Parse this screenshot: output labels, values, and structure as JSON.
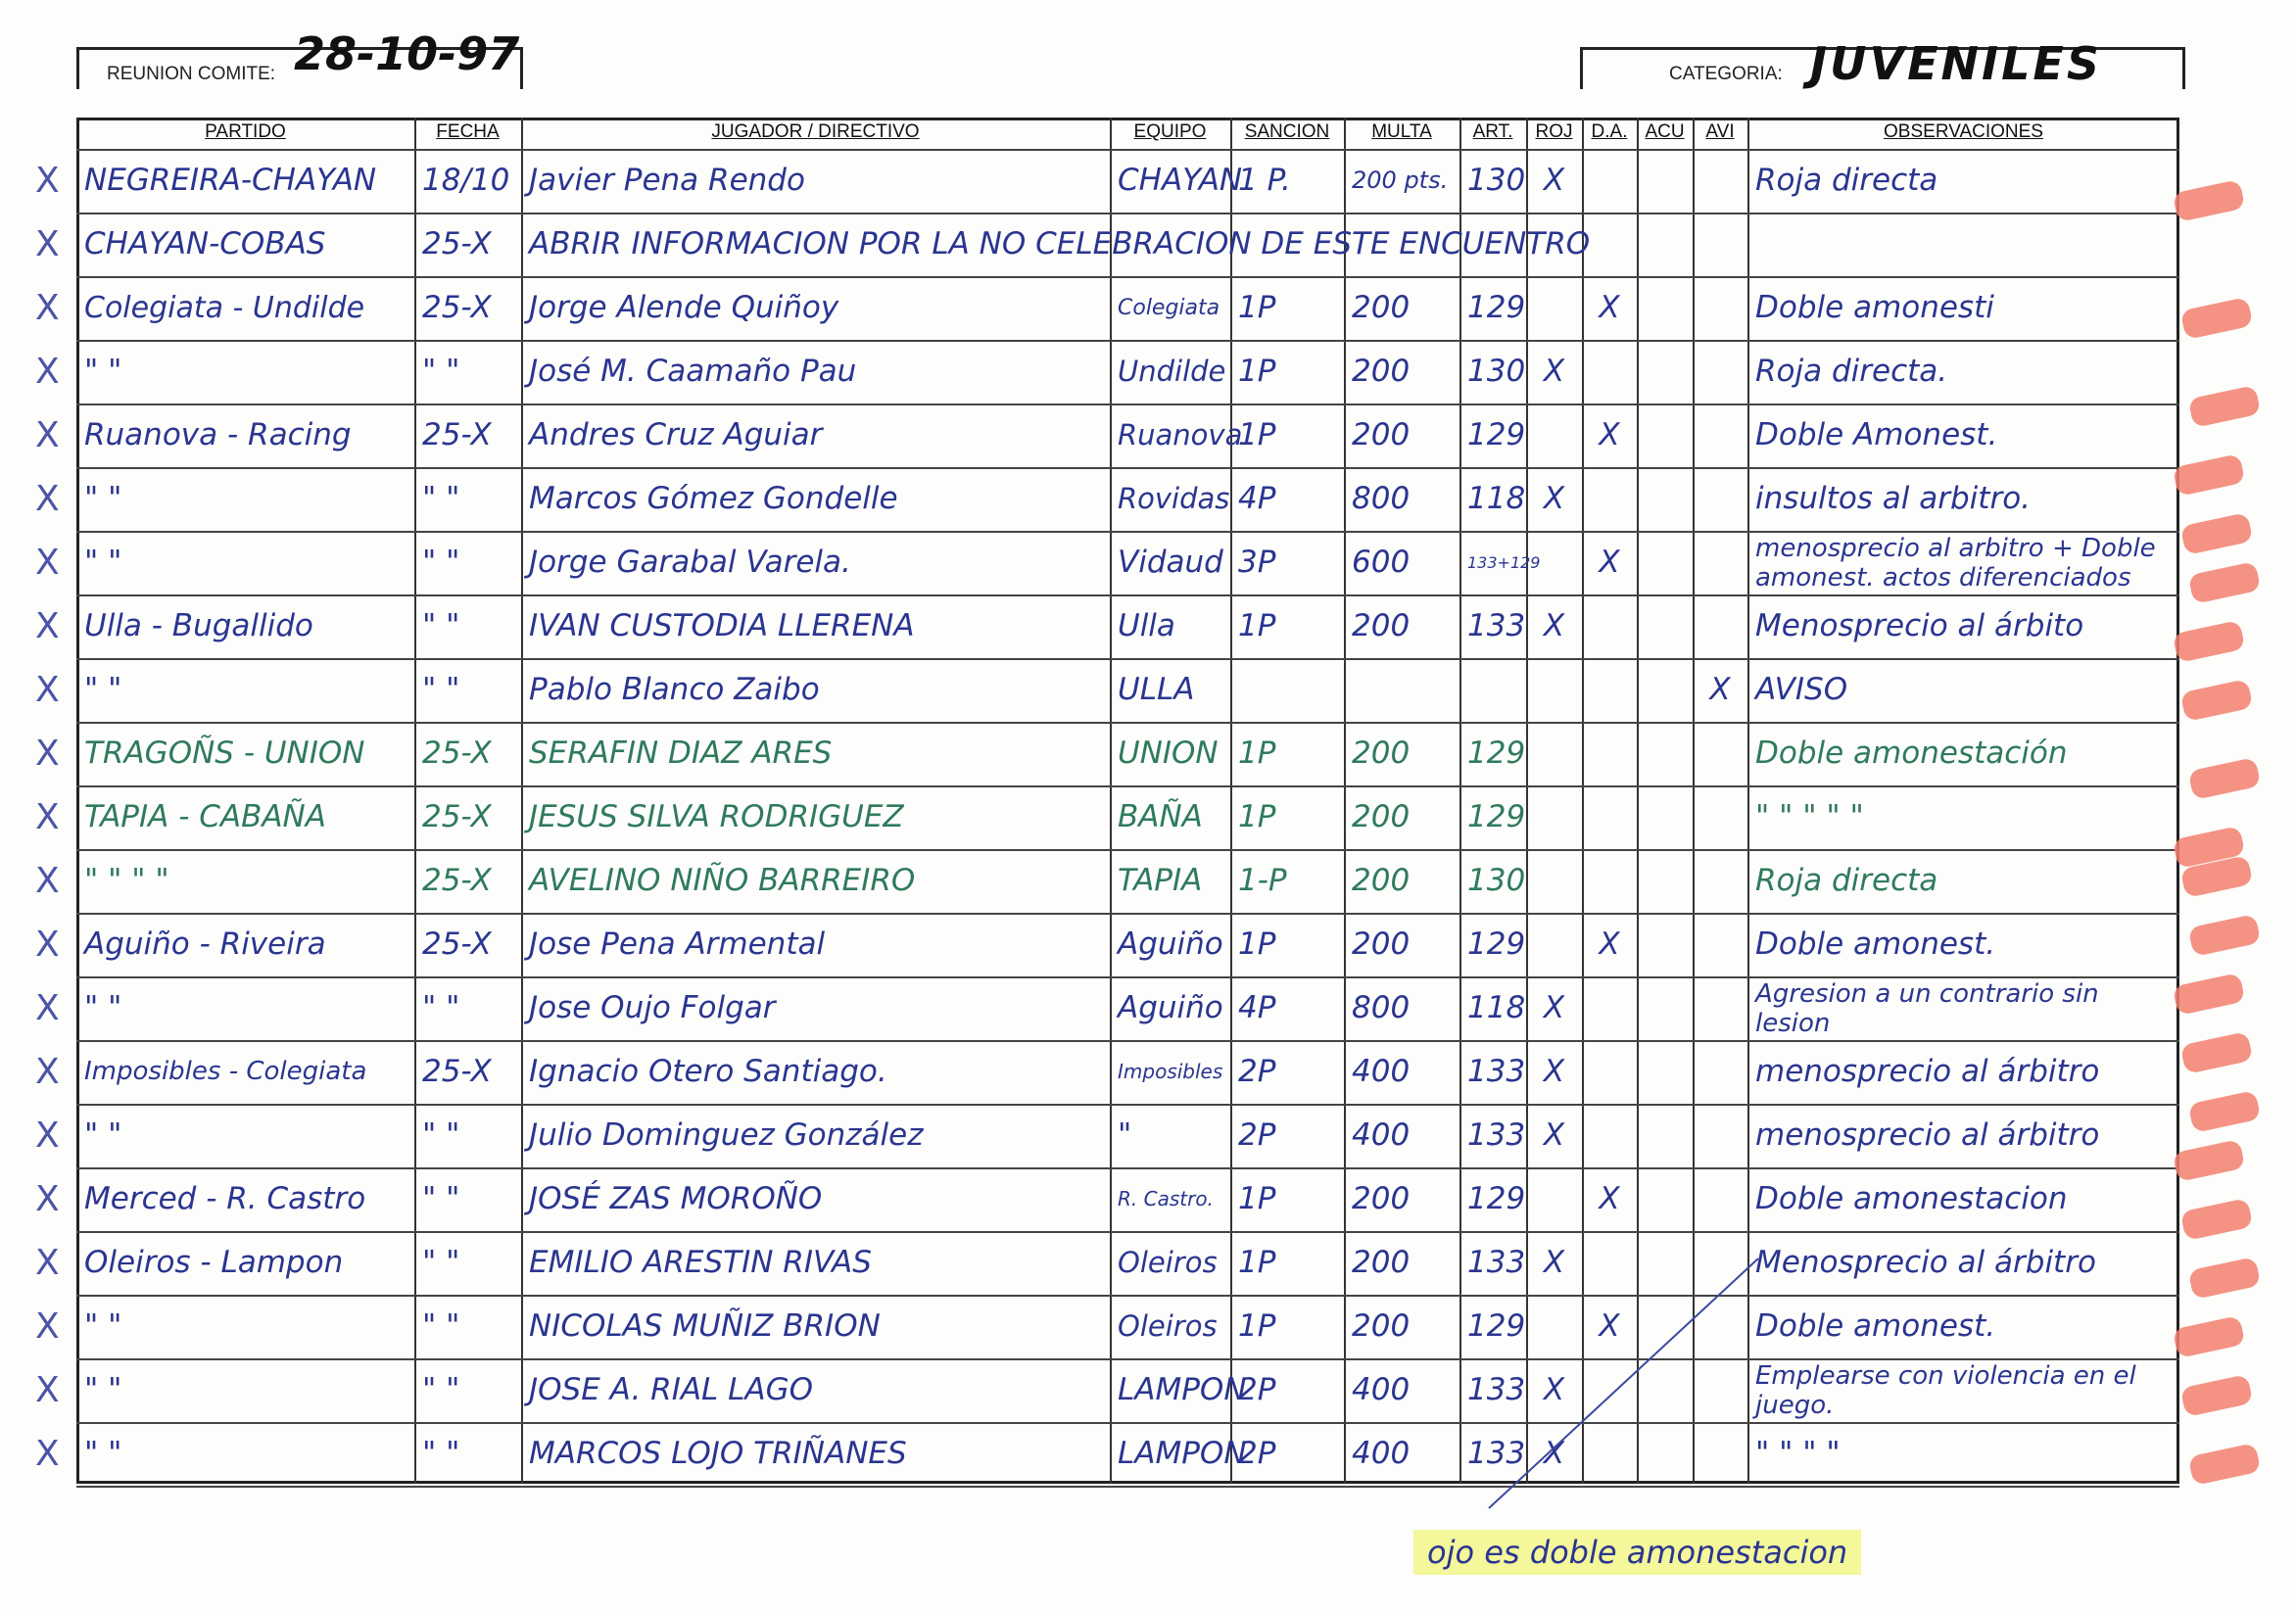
{
  "header": {
    "meeting_label": "REUNION COMITE:",
    "meeting_date": "28-10-97",
    "category_label": "CATEGORIA:",
    "category_value": "JUVENILES"
  },
  "columns": [
    "PARTIDO",
    "FECHA",
    "JUGADOR / DIRECTIVO",
    "EQUIPO",
    "SANCION",
    "MULTA",
    "ART.",
    "ROJ",
    "D.A.",
    "ACU",
    "AVI",
    "OBSERVACIONES"
  ],
  "ink_colors": {
    "blue": "#2a3590",
    "green": "#2f7a5e",
    "marker": "#f2806e",
    "highlight": "#f4f79a"
  },
  "rows": [
    {
      "partido": "NEGREIRA-CHAYAN",
      "fecha": "18/10",
      "jugador": "Javier Pena Rendo",
      "equipo": "CHAYAN",
      "sancion": "1 P.",
      "multa": "200 pts.",
      "art": "130",
      "roj": "X",
      "da": "",
      "acu": "",
      "avi": "",
      "obs": "Roja directa",
      "ink": "blue"
    },
    {
      "partido": "CHAYAN-COBAS",
      "fecha": "25-X",
      "jugador": "ABRIR INFORMACION POR LA NO CELEBRACION DE ESTE ENCUENTRO",
      "equipo": "",
      "sancion": "",
      "multa": "",
      "art": "",
      "roj": "",
      "da": "",
      "acu": "",
      "avi": "",
      "obs": "",
      "ink": "blue"
    },
    {
      "partido": "Colegiata - Undilde",
      "fecha": "25-X",
      "jugador": "Jorge Alende Quiñoy",
      "equipo": "Colegiata",
      "sancion": "1P",
      "multa": "200",
      "art": "129",
      "roj": "",
      "da": "X",
      "acu": "",
      "avi": "",
      "obs": "Doble amonesti",
      "ink": "blue"
    },
    {
      "partido": "\"      \"",
      "fecha": "\" \"",
      "jugador": "José M. Caamaño Pau",
      "equipo": "Undilde",
      "sancion": "1P",
      "multa": "200",
      "art": "130",
      "roj": "X",
      "da": "",
      "acu": "",
      "avi": "",
      "obs": "Roja directa.",
      "ink": "blue"
    },
    {
      "partido": "Ruanova - Racing",
      "fecha": "25-X",
      "jugador": "Andres Cruz Aguiar",
      "equipo": "Ruanova",
      "sancion": "1P",
      "multa": "200",
      "art": "129",
      "roj": "",
      "da": "X",
      "acu": "",
      "avi": "",
      "obs": "Doble Amonest.",
      "ink": "blue"
    },
    {
      "partido": "\"      \"",
      "fecha": "\" \"",
      "jugador": "Marcos Gómez Gondelle",
      "equipo": "Rovidas",
      "sancion": "4P",
      "multa": "800",
      "art": "118",
      "roj": "X",
      "da": "",
      "acu": "",
      "avi": "",
      "obs": "insultos al arbitro.",
      "ink": "blue"
    },
    {
      "partido": "\"      \"",
      "fecha": "\" \"",
      "jugador": "Jorge Garabal Varela.",
      "equipo": "Vidaud",
      "sancion": "3P",
      "multa": "600",
      "art": "133+129",
      "roj": "",
      "da": "X",
      "acu": "",
      "avi": "",
      "obs": "menosprecio al arbitro + Doble amonest. actos diferenciados",
      "ink": "blue"
    },
    {
      "partido": "Ulla - Bugallido",
      "fecha": "\" \"",
      "jugador": "IVAN CUSTODIA LLERENA",
      "equipo": "Ulla",
      "sancion": "1P",
      "multa": "200",
      "art": "133",
      "roj": "X",
      "da": "",
      "acu": "",
      "avi": "",
      "obs": "Menosprecio al árbito",
      "ink": "blue"
    },
    {
      "partido": "\"      \"",
      "fecha": "\" \"",
      "jugador": "Pablo Blanco Zaibo",
      "equipo": "ULLA",
      "sancion": "",
      "multa": "",
      "art": "",
      "roj": "",
      "da": "",
      "acu": "",
      "avi": "X",
      "obs": "AVISO",
      "ink": "blue"
    },
    {
      "partido": "TRAGOÑS - UNION",
      "fecha": "25-X",
      "jugador": "SERAFIN DIAZ ARES",
      "equipo": "UNION",
      "sancion": "1P",
      "multa": "200",
      "art": "129",
      "roj": "",
      "da": "",
      "acu": "",
      "avi": "",
      "obs": "Doble amonestación",
      "ink": "green"
    },
    {
      "partido": "TAPIA - CABAÑA",
      "fecha": "25-X",
      "jugador": "JESUS SILVA RODRIGUEZ",
      "equipo": "BAÑA",
      "sancion": "1P",
      "multa": "200",
      "art": "129",
      "roj": "",
      "da": "",
      "acu": "",
      "avi": "",
      "obs": "\"  \" \" \" \"",
      "ink": "green"
    },
    {
      "partido": "\" \" \" \"",
      "fecha": "25-X",
      "jugador": "AVELINO NIÑO BARREIRO",
      "equipo": "TAPIA",
      "sancion": "1-P",
      "multa": "200",
      "art": "130",
      "roj": "",
      "da": "",
      "acu": "",
      "avi": "",
      "obs": "Roja directa",
      "ink": "green"
    },
    {
      "partido": "Aguiño - Riveira",
      "fecha": "25-X",
      "jugador": "Jose Pena Armental",
      "equipo": "Aguiño",
      "sancion": "1P",
      "multa": "200",
      "art": "129",
      "roj": "",
      "da": "X",
      "acu": "",
      "avi": "",
      "obs": "Doble amonest.",
      "ink": "blue"
    },
    {
      "partido": "\"      \"",
      "fecha": "\" \"",
      "jugador": "Jose Oujo Folgar",
      "equipo": "Aguiño",
      "sancion": "4P",
      "multa": "800",
      "art": "118",
      "roj": "X",
      "da": "",
      "acu": "",
      "avi": "",
      "obs": "Agresion a un contrario sin lesion",
      "ink": "blue"
    },
    {
      "partido": "Imposibles - Colegiata",
      "fecha": "25-X",
      "jugador": "Ignacio Otero Santiago.",
      "equipo": "Imposibles",
      "sancion": "2P",
      "multa": "400",
      "art": "133",
      "roj": "X",
      "da": "",
      "acu": "",
      "avi": "",
      "obs": "menosprecio al árbitro",
      "ink": "blue"
    },
    {
      "partido": "\"      \"",
      "fecha": "\" \"",
      "jugador": "Julio Dominguez González",
      "equipo": "\"",
      "sancion": "2P",
      "multa": "400",
      "art": "133",
      "roj": "X",
      "da": "",
      "acu": "",
      "avi": "",
      "obs": "menosprecio al árbitro",
      "ink": "blue"
    },
    {
      "partido": "Merced - R. Castro",
      "fecha": "\" \"",
      "jugador": "JOSÉ ZAS MOROÑO",
      "equipo": "R. Castro.",
      "sancion": "1P",
      "multa": "200",
      "art": "129",
      "roj": "",
      "da": "X",
      "acu": "",
      "avi": "",
      "obs": "Doble amonestacion",
      "ink": "blue"
    },
    {
      "partido": "Oleiros - Lampon",
      "fecha": "\" \"",
      "jugador": "EMILIO ARESTIN RIVAS",
      "equipo": "Oleiros",
      "sancion": "1P",
      "multa": "200",
      "art": "133",
      "roj": "X",
      "da": "",
      "acu": "",
      "avi": "",
      "obs": "Menosprecio al árbitro",
      "ink": "blue"
    },
    {
      "partido": "\"      \"",
      "fecha": "\" \"",
      "jugador": "NICOLAS MUÑIZ BRION",
      "equipo": "Oleiros",
      "sancion": "1P",
      "multa": "200",
      "art": "129",
      "roj": "",
      "da": "X",
      "acu": "",
      "avi": "",
      "obs": "Doble amonest.",
      "ink": "blue"
    },
    {
      "partido": "\"      \"",
      "fecha": "\" \"",
      "jugador": "JOSE A. RIAL LAGO",
      "equipo": "LAMPON",
      "sancion": "2P",
      "multa": "400",
      "art": "133",
      "roj": "X",
      "da": "",
      "acu": "",
      "avi": "",
      "obs": "Emplearse con violencia en el juego.",
      "ink": "blue"
    },
    {
      "partido": "\"      \"",
      "fecha": "\" \"",
      "jugador": "MARCOS LOJO TRIÑANES",
      "equipo": "LAMPON",
      "sancion": "2P",
      "multa": "400",
      "art": "133",
      "roj": "X",
      "da": "",
      "acu": "",
      "avi": "",
      "obs": "\"   \"   \"   \"",
      "ink": "blue"
    }
  ],
  "row_check_mark": "X",
  "footer_note": "ojo es doble amonestacion"
}
